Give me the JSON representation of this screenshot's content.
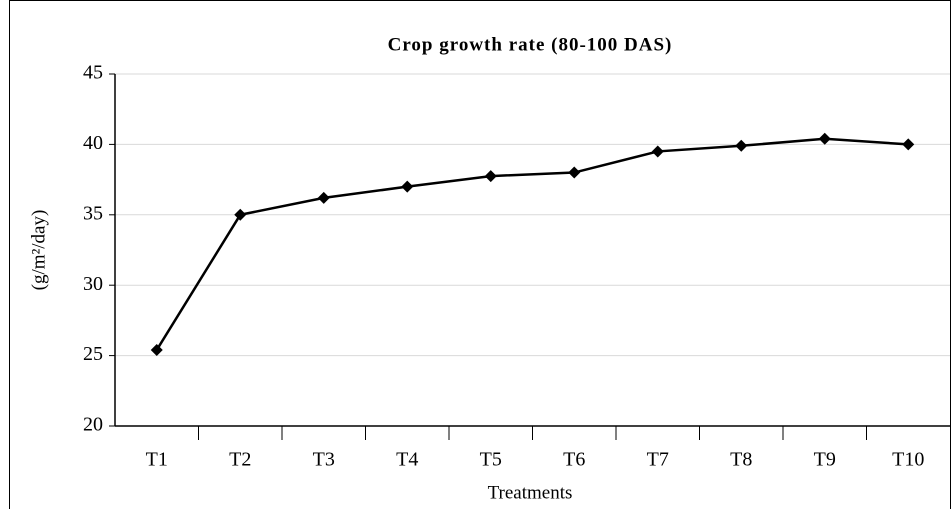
{
  "chart_data": {
    "type": "line",
    "title": "Crop growth rate (80-100 DAS)",
    "x_label": "Treatments",
    "y_label": "(g/m²/day)",
    "categories": [
      "T1",
      "T2",
      "T3",
      "T4",
      "T5",
      "T6",
      "T7",
      "T8",
      "T9",
      "T10"
    ],
    "series": [
      {
        "name": "Crop growth rate",
        "color": "#000000",
        "values": [
          25.4,
          35.0,
          36.2,
          37.0,
          37.75,
          38.0,
          39.5,
          39.9,
          40.4,
          40.0
        ]
      }
    ],
    "ylim": [
      20,
      45
    ],
    "yticks": [
      20,
      25,
      30,
      35,
      40,
      45
    ],
    "grid": true
  }
}
